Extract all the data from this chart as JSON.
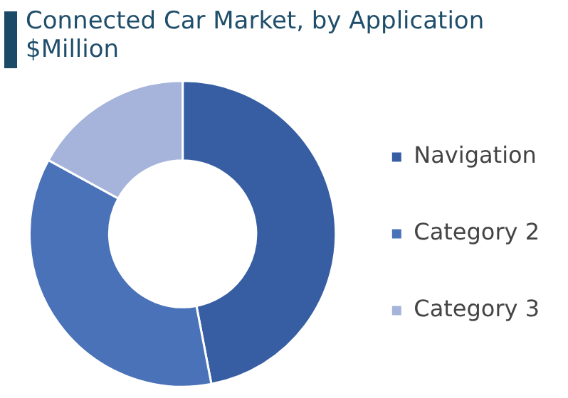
{
  "chart_data": {
    "type": "donut",
    "title": "Connected Car Market, by Application",
    "subtitle": "$Million",
    "categories": [
      "Navigation",
      "Category 2",
      "Category 3"
    ],
    "values": [
      47,
      36,
      17
    ],
    "colors": [
      "#375ea3",
      "#4a72b8",
      "#a6b4db"
    ],
    "legend": "right"
  }
}
